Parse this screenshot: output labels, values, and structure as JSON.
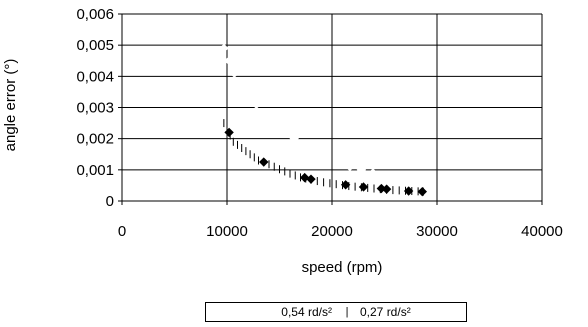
{
  "chart_data": {
    "type": "scatter",
    "xlabel": "speed (rpm)",
    "ylabel": "angle error (°)",
    "xlim": [
      0,
      40000
    ],
    "ylim": [
      0,
      0.006
    ],
    "x_ticks": [
      "0",
      "10000",
      "20000",
      "30000",
      "40000"
    ],
    "y_ticks": [
      "0",
      "0,001",
      "0,002",
      "0,003",
      "0,004",
      "0,005",
      "0,006"
    ],
    "grid": "horizontal-and-vertical",
    "legend_position": "bottom",
    "series": [
      {
        "name": "0,54 rd/s²",
        "marker": "diamond",
        "color": "#ffffff",
        "x": [
          9700,
          10200,
          10700,
          11300,
          12000,
          12800,
          13600,
          14500,
          15400,
          16400,
          17400,
          18400,
          19500,
          20600,
          21700,
          22800,
          23900,
          25000,
          26100,
          27200,
          28000,
          28700
        ],
        "y": [
          0.0049,
          0.0045,
          0.0041,
          0.0037,
          0.0034,
          0.0031,
          0.0028,
          0.0025,
          0.0022,
          0.002,
          0.0018,
          0.0016,
          0.0014,
          0.0012,
          0.0011,
          0.001,
          0.0009,
          0.0008,
          0.0007,
          0.00065,
          0.0006,
          0.00055
        ]
      },
      {
        "name": "0,27 rd/s²",
        "marker": "tick",
        "color": "#000000",
        "x": [
          9700,
          10000,
          10300,
          10600,
          11000,
          11400,
          11800,
          12200,
          12600,
          13000,
          13500,
          14000,
          14500,
          15000,
          15500,
          16000,
          16500,
          17000,
          17500,
          18000,
          18600,
          19200,
          19800,
          20400,
          21000,
          21600,
          22200,
          22800,
          23400,
          24000,
          24600,
          25200,
          25800,
          26400,
          27000,
          27600,
          28200,
          28700
        ],
        "y": [
          0.0025,
          0.0023,
          0.0021,
          0.0019,
          0.0018,
          0.0017,
          0.0016,
          0.0015,
          0.0014,
          0.0013,
          0.00125,
          0.00118,
          0.0011,
          0.00102,
          0.00095,
          0.00088,
          0.00082,
          0.00076,
          0.00072,
          0.00068,
          0.00064,
          0.0006,
          0.00057,
          0.00054,
          0.00051,
          0.00048,
          0.00046,
          0.00044,
          0.00042,
          0.0004,
          0.00038,
          0.00036,
          0.00035,
          0.00034,
          0.00033,
          0.00032,
          0.00031,
          0.0003
        ]
      },
      {
        "name": "",
        "marker": "filled-diamond",
        "color": "#000000",
        "x": [
          10200,
          13500,
          17400,
          18000,
          21300,
          23000,
          24700,
          25200,
          27300,
          28600
        ],
        "y": [
          0.0022,
          0.00125,
          0.00075,
          0.0007,
          0.00052,
          0.00045,
          0.0004,
          0.00038,
          0.00032,
          0.0003
        ]
      }
    ]
  }
}
